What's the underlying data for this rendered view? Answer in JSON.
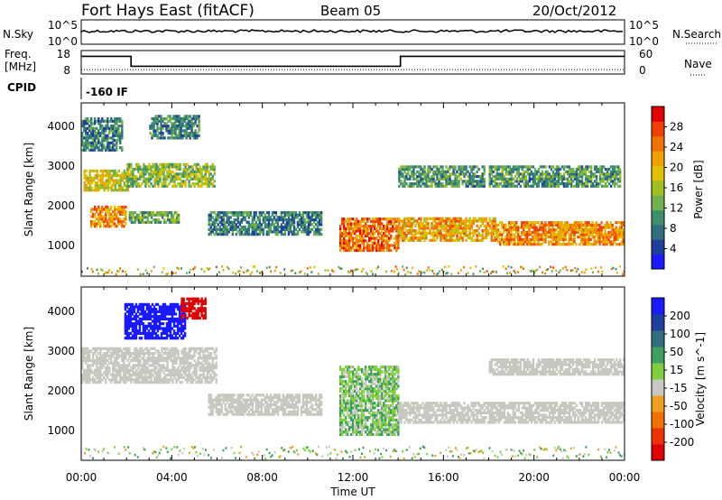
{
  "header": {
    "title": "Fort Hays East (fitACF)",
    "beam": "Beam 05",
    "date": "20/Oct/2012"
  },
  "noise_panel": {
    "left_label": "N.Sky",
    "left_tick_top": "10^5",
    "left_tick_bottom": "10^0",
    "right_label": "N.Search",
    "right_tick_top": "10^5",
    "right_tick_bottom": "10^0"
  },
  "freq_panel": {
    "left_label_line1": "Freq.",
    "left_label_line2": "[MHz]",
    "left_ticks": [
      "18",
      "8"
    ],
    "right_label": "Nave",
    "right_ticks": [
      "60",
      "0"
    ]
  },
  "cpid_panel": {
    "label": "CPID",
    "value": "-160 IF"
  },
  "x_axis": {
    "label": "Time UT",
    "ticks": [
      "00:00",
      "04:00",
      "08:00",
      "12:00",
      "16:00",
      "20:00",
      "00:00"
    ]
  },
  "power_panel": {
    "ylabel": "Slant Range [km]",
    "yticks": [
      "1000",
      "2000",
      "3000",
      "4000"
    ],
    "colorbar_label": "Power [dB]",
    "colorbar_ticks": [
      "4",
      "8",
      "12",
      "16",
      "20",
      "24",
      "28"
    ],
    "colors": [
      "#1a1aff",
      "#1f3f9f",
      "#2f6f7f",
      "#3f8f6f",
      "#6fb04f",
      "#a0c020",
      "#e0c000",
      "#f0a000",
      "#f07000",
      "#f04000",
      "#e00000"
    ]
  },
  "velocity_panel": {
    "ylabel": "Slant Range [km]",
    "yticks": [
      "1000",
      "2000",
      "3000",
      "4000"
    ],
    "colorbar_label": "Velocity [m s^-1]",
    "colorbar_ticks": [
      "200",
      "100",
      "50",
      "15",
      "-15",
      "-50",
      "-100",
      "-200"
    ],
    "colors": [
      "#1a1aff",
      "#1f3f9f",
      "#2f6f7f",
      "#3f9f5f",
      "#7fcf3f",
      "#c8c8c0",
      "#f0a020",
      "#f07000",
      "#f03000",
      "#e00000"
    ]
  },
  "chart_data": {
    "type": "heatmap",
    "title": "Fort Hays East (fitACF)",
    "subtitle": "Beam 05",
    "date": "20/Oct/2012",
    "xlabel": "Time UT",
    "ylabel": "Slant Range [km]",
    "x_range_hours": [
      0,
      24
    ],
    "y_range_km": [
      180,
      4500
    ],
    "frequency_mhz": [
      {
        "start_h": 0,
        "end_h": 2.2,
        "value": 16
      },
      {
        "start_h": 2.2,
        "end_h": 14.1,
        "value": 11
      },
      {
        "start_h": 14.1,
        "end_h": 24,
        "value": 16
      }
    ],
    "nave": 8,
    "cpid": "-160 IF",
    "power_regions": [
      {
        "t0": 0.4,
        "t1": 2.0,
        "r0": 1400,
        "r1": 1900,
        "level": 24
      },
      {
        "t0": 0.1,
        "t1": 2.1,
        "r0": 2300,
        "r1": 2800,
        "level": 18
      },
      {
        "t0": 0.0,
        "t1": 1.8,
        "r0": 3300,
        "r1": 4100,
        "level": 8
      },
      {
        "t0": 2.1,
        "t1": 4.3,
        "r0": 1500,
        "r1": 1800,
        "level": 12
      },
      {
        "t0": 2.0,
        "t1": 5.9,
        "r0": 2400,
        "r1": 3000,
        "level": 14
      },
      {
        "t0": 3.0,
        "t1": 5.2,
        "r0": 3600,
        "r1": 4200,
        "level": 8
      },
      {
        "t0": 5.6,
        "t1": 10.6,
        "r0": 1200,
        "r1": 1800,
        "level": 8
      },
      {
        "t0": 11.4,
        "t1": 14.0,
        "r0": 800,
        "r1": 1600,
        "level": 26
      },
      {
        "t0": 14.0,
        "t1": 18.3,
        "r0": 1050,
        "r1": 1600,
        "level": 22
      },
      {
        "t0": 18.3,
        "t1": 24.0,
        "r0": 950,
        "r1": 1500,
        "level": 24
      },
      {
        "t0": 14.0,
        "t1": 17.8,
        "r0": 2400,
        "r1": 2900,
        "level": 10
      },
      {
        "t0": 18.0,
        "t1": 23.8,
        "r0": 2400,
        "r1": 2900,
        "level": 10
      }
    ],
    "velocity_regions": [
      {
        "t0": 0.0,
        "t1": 6.0,
        "r0": 2100,
        "r1": 3000,
        "velocity": 0
      },
      {
        "t0": 1.9,
        "t1": 4.6,
        "r0": 3200,
        "r1": 4100,
        "velocity": 200
      },
      {
        "t0": 4.4,
        "t1": 5.5,
        "r0": 3700,
        "r1": 4200,
        "velocity": -200
      },
      {
        "t0": 5.6,
        "t1": 10.6,
        "r0": 1300,
        "r1": 1800,
        "velocity": 0
      },
      {
        "t0": 11.4,
        "t1": 14.0,
        "r0": 800,
        "r1": 2500,
        "velocity": 30
      },
      {
        "t0": 14.0,
        "t1": 24.0,
        "r0": 1100,
        "r1": 1600,
        "velocity": 0
      },
      {
        "t0": 18.0,
        "t1": 24.0,
        "r0": 2300,
        "r1": 2700,
        "velocity": 0
      }
    ]
  }
}
